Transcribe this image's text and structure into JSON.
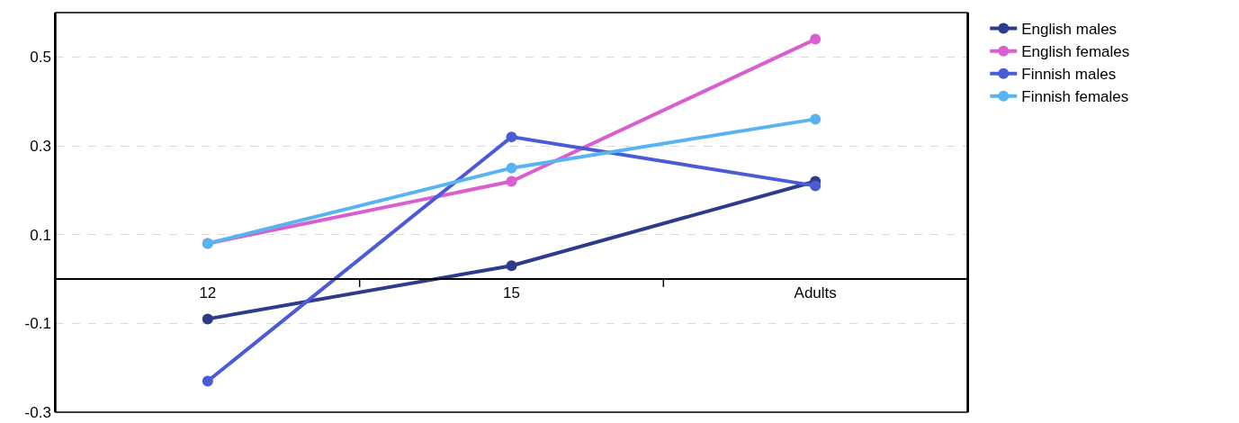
{
  "chart_data": {
    "type": "line",
    "categories": [
      "12",
      "15",
      "Adults"
    ],
    "series": [
      {
        "name": "English males",
        "color": "#2e3a8c",
        "values": [
          -0.09,
          0.03,
          0.22
        ]
      },
      {
        "name": "English females",
        "color": "#d95fd0",
        "values": [
          0.08,
          0.22,
          0.54
        ]
      },
      {
        "name": "Finnish males",
        "color": "#4a5bd6",
        "values": [
          -0.23,
          0.32,
          0.21
        ]
      },
      {
        "name": "Finnish females",
        "color": "#58b4f0",
        "values": [
          0.08,
          0.25,
          0.36
        ]
      }
    ],
    "ylim": [
      -0.3,
      0.6
    ],
    "yticks": [
      0.5,
      0.3,
      0.1,
      -0.1,
      -0.3
    ],
    "grid": "y",
    "legend": "top right",
    "marker": "circle",
    "line_style": "solid"
  }
}
